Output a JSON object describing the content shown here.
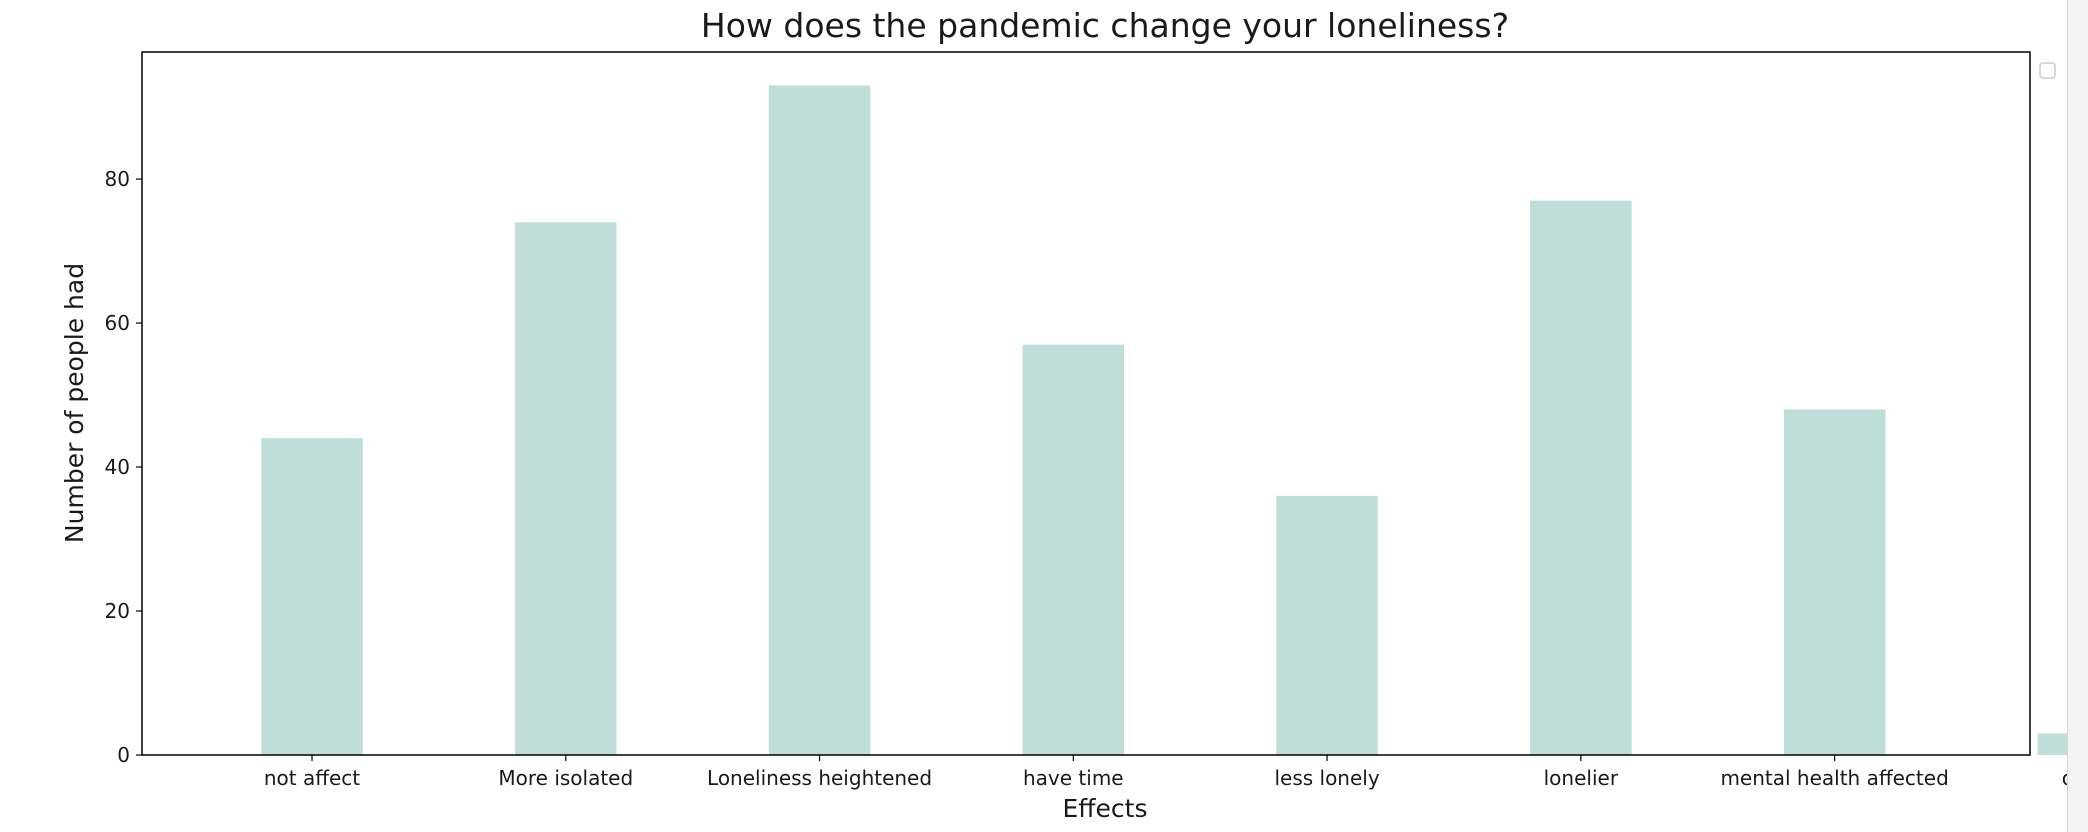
{
  "chart_data": {
    "type": "bar",
    "title": "How does the pandemic change your loneliness?",
    "xlabel": "Effects",
    "ylabel": "Number of people had",
    "categories": [
      "not affect",
      "More isolated",
      "Loneliness heightened",
      "have time",
      "less lonely",
      "lonelier",
      "mental health affected",
      "other"
    ],
    "values": [
      44,
      74,
      93,
      57,
      36,
      77,
      48,
      3
    ],
    "ylim": [
      0,
      97.65
    ],
    "yticks": [
      0,
      20,
      40,
      60,
      80
    ],
    "bar_color": "#bfded8",
    "grid": false,
    "legend": "top-right, empty"
  }
}
